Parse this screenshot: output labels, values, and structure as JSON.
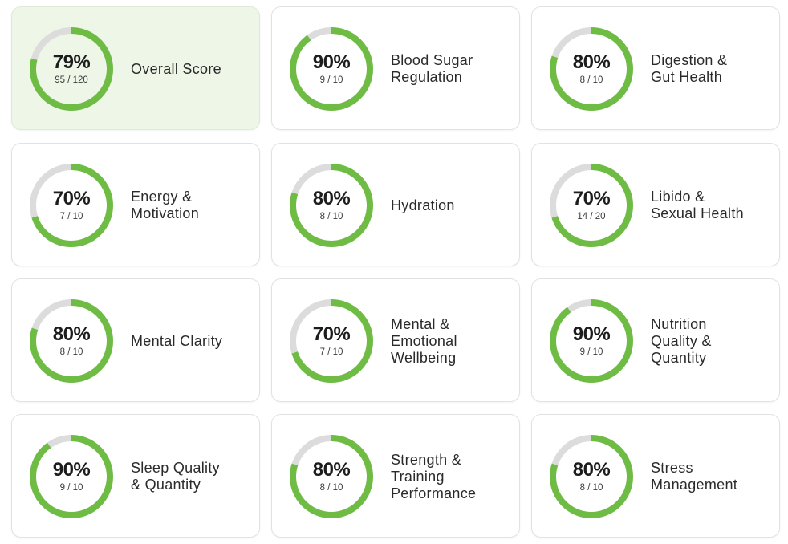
{
  "colors": {
    "ring_fill": "#6fbc45",
    "ring_track": "#dcdcdc",
    "highlight_bg": "#eef7e7",
    "card_border": "#e2e2e2"
  },
  "cards": [
    {
      "id": "overall-score",
      "percent": "79%",
      "score": "95 / 120",
      "fraction": 0.79,
      "label": "Overall Score",
      "highlight": true
    },
    {
      "id": "blood-sugar-regulation",
      "percent": "90%",
      "score": "9 / 10",
      "fraction": 0.9,
      "label": "Blood Sugar\nRegulation"
    },
    {
      "id": "digestion-gut-health",
      "percent": "80%",
      "score": "8 / 10",
      "fraction": 0.8,
      "label": "Digestion &\nGut Health"
    },
    {
      "id": "energy-motivation",
      "percent": "70%",
      "score": "7 / 10",
      "fraction": 0.7,
      "label": "Energy &\nMotivation"
    },
    {
      "id": "hydration",
      "percent": "80%",
      "score": "8 / 10",
      "fraction": 0.8,
      "label": "Hydration"
    },
    {
      "id": "libido-sexual-health",
      "percent": "70%",
      "score": "14 / 20",
      "fraction": 0.7,
      "label": "Libido &\nSexual Health"
    },
    {
      "id": "mental-clarity",
      "percent": "80%",
      "score": "8 / 10",
      "fraction": 0.8,
      "label": "Mental Clarity"
    },
    {
      "id": "mental-emotional-wellbeing",
      "percent": "70%",
      "score": "7 / 10",
      "fraction": 0.7,
      "label": "Mental &\nEmotional\nWellbeing"
    },
    {
      "id": "nutrition-quality-quantity",
      "percent": "90%",
      "score": "9 / 10",
      "fraction": 0.9,
      "label": "Nutrition\nQuality &\nQuantity"
    },
    {
      "id": "sleep-quality-quantity",
      "percent": "90%",
      "score": "9 / 10",
      "fraction": 0.9,
      "label": "Sleep Quality\n& Quantity"
    },
    {
      "id": "strength-training-performance",
      "percent": "80%",
      "score": "8 / 10",
      "fraction": 0.8,
      "label": "Strength &\nTraining\nPerformance"
    },
    {
      "id": "stress-management",
      "percent": "80%",
      "score": "8 / 10",
      "fraction": 0.8,
      "label": "Stress\nManagement"
    }
  ]
}
